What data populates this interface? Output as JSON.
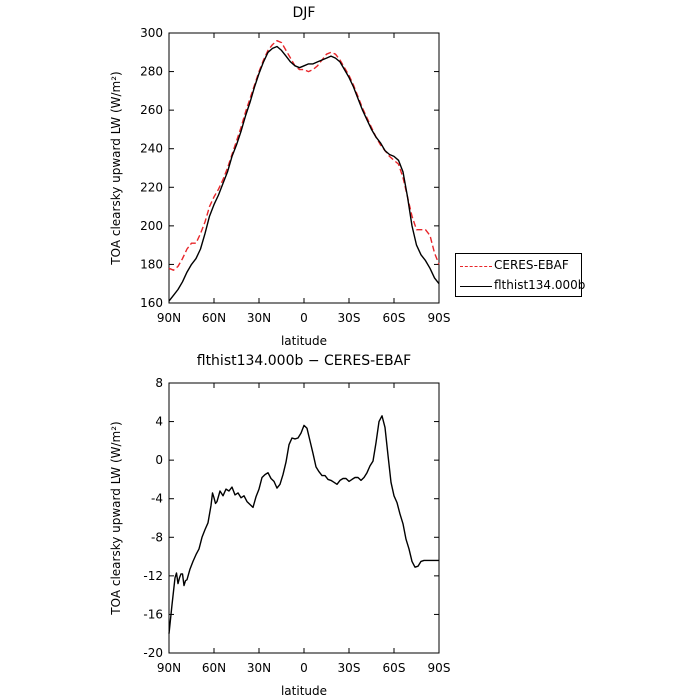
{
  "chart_data": [
    {
      "type": "line",
      "title": "DJF",
      "xlabel": "latitude",
      "ylabel": "TOA clearsky upward LW (W/m²)",
      "xlim": [
        90,
        -90
      ],
      "ylim": [
        160,
        300
      ],
      "xticks": [
        90,
        60,
        30,
        0,
        -30,
        -60,
        -90
      ],
      "xtick_labels": [
        "90N",
        "60N",
        "30N",
        "0",
        "30S",
        "60S",
        "90S"
      ],
      "yticks": [
        160,
        180,
        200,
        220,
        240,
        260,
        280,
        300
      ],
      "legend": "right",
      "series": [
        {
          "name": "CERES-EBAF",
          "color": "#e8262a",
          "dash": "dashed",
          "x": [
            90,
            87,
            84,
            81,
            78,
            75,
            72,
            69,
            66,
            63,
            60,
            57,
            54,
            51,
            48,
            45,
            42,
            39,
            36,
            33,
            30,
            27,
            24,
            21,
            18,
            15,
            12,
            9,
            6,
            3,
            0,
            -3,
            -6,
            -9,
            -12,
            -15,
            -18,
            -21,
            -24,
            -27,
            -30,
            -33,
            -36,
            -39,
            -42,
            -45,
            -48,
            -51,
            -54,
            -57,
            -60,
            -63,
            -66,
            -69,
            -72,
            -75,
            -78,
            -81,
            -84,
            -87,
            -90
          ],
          "y": [
            178,
            177,
            179,
            183,
            188,
            191,
            191,
            196,
            202,
            210,
            215,
            219,
            224,
            230,
            237,
            244,
            251,
            259,
            266,
            273,
            280,
            286,
            291,
            294,
            296,
            295,
            291,
            287,
            283,
            281,
            281,
            280,
            281,
            283,
            286,
            289,
            290,
            289,
            286,
            282,
            278,
            273,
            267,
            261,
            256,
            251,
            246,
            242,
            239,
            236,
            234,
            232,
            225,
            215,
            205,
            198,
            198,
            198,
            195,
            186,
            180
          ]
        },
        {
          "name": "flthist134.000b",
          "color": "#000000",
          "dash": "solid",
          "x": [
            90,
            87,
            84,
            81,
            78,
            75,
            72,
            69,
            66,
            63,
            60,
            57,
            54,
            51,
            48,
            45,
            42,
            39,
            36,
            33,
            30,
            27,
            24,
            21,
            18,
            15,
            12,
            9,
            6,
            3,
            0,
            -3,
            -6,
            -9,
            -12,
            -15,
            -18,
            -21,
            -24,
            -27,
            -30,
            -33,
            -36,
            -39,
            -42,
            -45,
            -48,
            -51,
            -54,
            -57,
            -60,
            -63,
            -66,
            -69,
            -72,
            -75,
            -78,
            -81,
            -84,
            -87,
            -90
          ],
          "y": [
            161,
            164,
            167,
            171,
            176,
            180,
            183,
            188,
            196,
            205,
            211,
            216,
            222,
            228,
            236,
            242,
            249,
            257,
            264,
            272,
            279,
            285,
            290,
            292,
            293,
            291,
            288,
            285,
            283,
            282,
            283,
            284,
            284,
            285,
            286,
            287,
            288,
            287,
            285,
            281,
            277,
            272,
            266,
            260,
            255,
            250,
            246,
            243,
            239,
            237,
            236,
            234,
            228,
            215,
            200,
            190,
            185,
            182,
            178,
            173,
            170
          ]
        }
      ]
    },
    {
      "type": "line",
      "title": "flthist134.000b − CERES-EBAF",
      "xlabel": "latitude",
      "ylabel": "TOA clearsky upward LW (W/m²)",
      "xlim": [
        90,
        -90
      ],
      "ylim": [
        -20,
        8
      ],
      "xticks": [
        90,
        60,
        30,
        0,
        -30,
        -60,
        -90
      ],
      "xtick_labels": [
        "90N",
        "60N",
        "30N",
        "0",
        "30S",
        "60S",
        "90S"
      ],
      "yticks": [
        -20,
        -16,
        -12,
        -8,
        -4,
        0,
        4,
        8
      ],
      "series": [
        {
          "color": "#000000",
          "dash": "solid",
          "x": [
            90,
            88,
            86,
            85,
            84,
            83,
            82,
            81,
            80,
            79,
            78,
            76,
            74,
            72,
            70,
            68,
            66,
            64,
            62,
            61,
            60,
            59,
            58,
            56,
            54,
            52,
            50,
            48,
            46,
            44,
            42,
            40,
            38,
            36,
            34,
            32,
            30,
            28,
            26,
            24,
            22,
            20,
            18,
            16,
            14,
            12,
            10,
            8,
            6,
            4,
            2,
            0,
            -2,
            -4,
            -6,
            -8,
            -10,
            -12,
            -14,
            -16,
            -18,
            -20,
            -22,
            -24,
            -26,
            -28,
            -30,
            -32,
            -34,
            -36,
            -38,
            -40,
            -42,
            -44,
            -46,
            -48,
            -50,
            -52,
            -54,
            -56,
            -58,
            -60,
            -62,
            -64,
            -66,
            -68,
            -70,
            -72,
            -74,
            -76,
            -78,
            -80,
            -82,
            -84,
            -86,
            -88,
            -90
          ],
          "y": [
            -18,
            -15,
            -12.2,
            -11.7,
            -12.8,
            -12.2,
            -11.8,
            -11.8,
            -13,
            -12.5,
            -12.4,
            -11.3,
            -10.5,
            -9.8,
            -9.2,
            -8,
            -7.2,
            -6.5,
            -4.7,
            -3.4,
            -3.9,
            -4.5,
            -4.3,
            -3.2,
            -3.7,
            -3,
            -3.2,
            -2.8,
            -3.6,
            -3.4,
            -3.9,
            -3.7,
            -4.3,
            -4.6,
            -4.9,
            -3.8,
            -3,
            -1.8,
            -1.5,
            -1.3,
            -1.9,
            -2.2,
            -2.9,
            -2.5,
            -1.5,
            -0.2,
            1.6,
            2.3,
            2.2,
            2.3,
            2.8,
            3.6,
            3.3,
            2,
            0.7,
            -0.7,
            -1.2,
            -1.6,
            -1.6,
            -2,
            -2.1,
            -2.3,
            -2.5,
            -2.1,
            -1.9,
            -1.9,
            -2.2,
            -2,
            -1.8,
            -1.8,
            -2.1,
            -1.8,
            -1.3,
            -0.6,
            -0.1,
            1.8,
            4,
            4.6,
            3.4,
            0.5,
            -2.3,
            -3.7,
            -4.4,
            -5.6,
            -6.6,
            -8.2,
            -9.2,
            -10.5,
            -11.1,
            -11,
            -10.5,
            -10.4,
            -10.4,
            -10.4,
            -10.4,
            -10.4,
            -10.4
          ]
        }
      ]
    }
  ]
}
